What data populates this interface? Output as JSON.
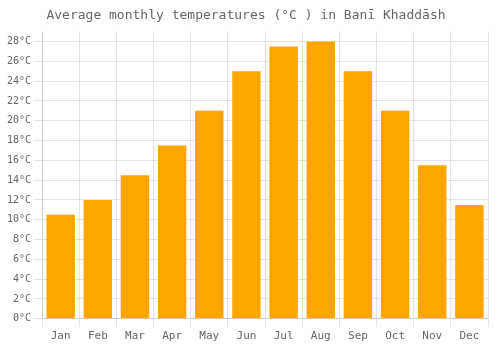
{
  "chart_data": {
    "type": "bar",
    "title": "Average monthly temperatures (°C ) in Banī Khaddāsh",
    "categories": [
      "Jan",
      "Feb",
      "Mar",
      "Apr",
      "May",
      "Jun",
      "Jul",
      "Aug",
      "Sep",
      "Oct",
      "Nov",
      "Dec"
    ],
    "values": [
      10.5,
      12.0,
      14.5,
      17.5,
      21.0,
      25.0,
      27.5,
      28.0,
      25.0,
      21.0,
      15.5,
      11.5
    ],
    "color": "#FFA500",
    "ylim": [
      0,
      29
    ],
    "yticks": [
      {
        "value": 0,
        "label": "0°C"
      },
      {
        "value": 2,
        "label": "2°C"
      },
      {
        "value": 4,
        "label": "4°C"
      },
      {
        "value": 6,
        "label": "6°C"
      },
      {
        "value": 8,
        "label": "8°C"
      },
      {
        "value": 10,
        "label": "10°C"
      },
      {
        "value": 12,
        "label": "12°C"
      },
      {
        "value": 14,
        "label": "14°C"
      },
      {
        "value": 16,
        "label": "16°C"
      },
      {
        "value": 18,
        "label": "18°C"
      },
      {
        "value": 20,
        "label": "20°C"
      },
      {
        "value": 22,
        "label": "22°C"
      },
      {
        "value": 24,
        "label": "24°C"
      },
      {
        "value": 26,
        "label": "26°C"
      },
      {
        "value": 28,
        "label": "28°C"
      }
    ],
    "grid": true
  }
}
